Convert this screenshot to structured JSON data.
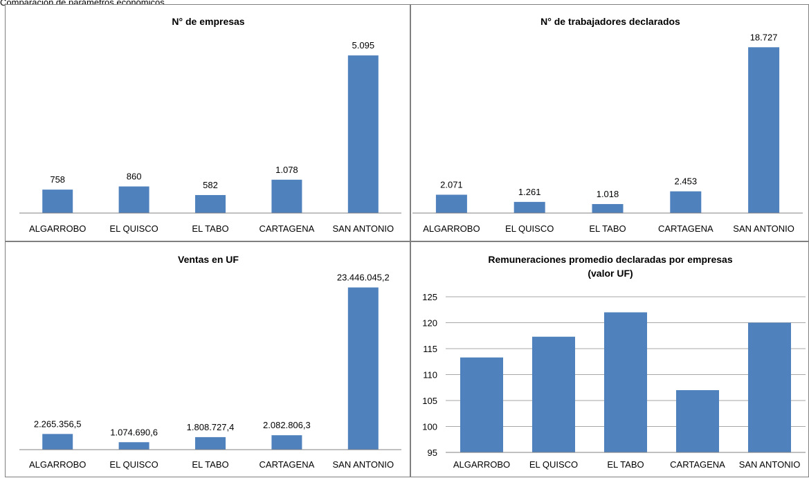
{
  "caption": "Comparación de parámetros económicos",
  "colors": {
    "bar": "#4f81bd",
    "axis": "#808080",
    "grid": "#a6a6a6",
    "border": "#7f7f7f"
  },
  "chart_data": [
    {
      "type": "bar",
      "title": [
        "N° de empresas"
      ],
      "categories": [
        "ALGARROBO",
        "EL QUISCO",
        "EL TABO",
        "CARTAGENA",
        "SAN ANTONIO"
      ],
      "values": [
        758,
        860,
        582,
        1078,
        5095
      ],
      "data_labels": [
        "758",
        "860",
        "582",
        "1.078",
        "5.095"
      ],
      "ylim": [
        0,
        5500
      ],
      "grid": false
    },
    {
      "type": "bar",
      "title": [
        "N° de trabajadores declarados"
      ],
      "categories": [
        "ALGARROBO",
        "EL QUISCO",
        "EL TABO",
        "CARTAGENA",
        "SAN ANTONIO"
      ],
      "values": [
        2071,
        1261,
        1018,
        2453,
        18727
      ],
      "data_labels": [
        "2.071",
        "1.261",
        "1.018",
        "2.453",
        "18.727"
      ],
      "ylim": [
        0,
        20000
      ],
      "grid": false
    },
    {
      "type": "bar",
      "title": [
        "Ventas en UF"
      ],
      "categories": [
        "ALGARROBO",
        "EL QUISCO",
        "EL TABO",
        "CARTAGENA",
        "SAN ANTONIO"
      ],
      "values": [
        2265356.5,
        1074690.6,
        1808727.4,
        2082806.3,
        23446045.2
      ],
      "data_labels": [
        "2.265.356,5",
        "1.074.690,6",
        "1.808.727,4",
        "2.082.806,3",
        "23.446.045,2"
      ],
      "ylim": [
        0,
        25000000
      ],
      "grid": false
    },
    {
      "type": "bar",
      "title": [
        "Remuneraciones promedio declaradas por empresas",
        "(valor UF)"
      ],
      "categories": [
        "ALGARROBO",
        "EL QUISCO",
        "EL TABO",
        "CARTAGENA",
        "SAN ANTONIO"
      ],
      "values": [
        113.3,
        117.3,
        122.0,
        107.0,
        120.0
      ],
      "data_labels": [],
      "ylim": [
        95,
        125
      ],
      "yticks": [
        95,
        100,
        105,
        110,
        115,
        120,
        125
      ],
      "grid": true
    }
  ]
}
